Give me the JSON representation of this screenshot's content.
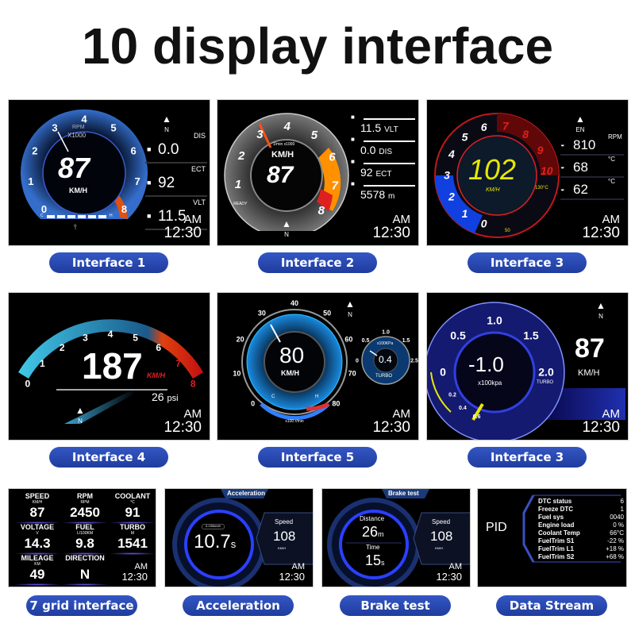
{
  "title": "10 display interface",
  "clock": {
    "am": "AM",
    "time": "12:30"
  },
  "compass": "N",
  "p1": {
    "label": "Interface 1",
    "rpm": "RPM",
    "rpm_mult": "X1000",
    "speed": "87",
    "unit": "KM/H",
    "ticks": [
      "0",
      "1",
      "2",
      "3",
      "4",
      "5",
      "6",
      "7",
      "8"
    ],
    "rows": [
      {
        "name": "DIS",
        "value": "0.0",
        "icon": "ab-distance-icon"
      },
      {
        "name": "ECT",
        "value": "92",
        "icon": "coolant-icon"
      },
      {
        "name": "VLT",
        "value": "11.5",
        "icon": "battery-icon"
      }
    ],
    "temp_c": "C",
    "temp_h": "H"
  },
  "p2": {
    "label": "Interface 2",
    "ticks": [
      "1",
      "2",
      "3",
      "4",
      "5",
      "6",
      "7",
      "8"
    ],
    "rpm": "1/min x1000",
    "unit": "KM/H",
    "speed": "87",
    "ready": "READY",
    "rows": [
      {
        "value": "11.5",
        "unit": "VLT",
        "icon": "battery-icon"
      },
      {
        "value": "0.0",
        "unit": "DIS",
        "icon": "ab-distance-icon"
      },
      {
        "value": "92",
        "unit": "ECT",
        "icon": "coolant-icon"
      },
      {
        "value": "5578",
        "unit": "m",
        "icon": "altitude-icon"
      }
    ]
  },
  "p3": {
    "label": "Interface 3",
    "ticks": [
      "0",
      "1",
      "2",
      "3",
      "4",
      "5",
      "6",
      "7",
      "8",
      "9",
      "10"
    ],
    "speed": "102",
    "unit": "KM/H",
    "compass": "EN",
    "temp_hi": "130°C",
    "temp_lo": "50",
    "rows": [
      {
        "value": "810",
        "unit": "RPM",
        "icon": "rpm-icon"
      },
      {
        "value": "68",
        "unit": "°C",
        "icon": "coolant-icon"
      },
      {
        "value": "62",
        "unit": "°C",
        "icon": "oil-icon"
      }
    ]
  },
  "p4": {
    "label": "Interface 4",
    "ticks": [
      "0",
      "1",
      "2",
      "3",
      "4",
      "5",
      "6",
      "7",
      "8"
    ],
    "speed": "187",
    "unit": "KM/H",
    "boost": "26",
    "boost_unit": "psi"
  },
  "p5": {
    "label": "Interface 5",
    "ticks": [
      "0",
      "10",
      "20",
      "30",
      "40",
      "50",
      "60",
      "70",
      "80"
    ],
    "speed": "80",
    "unit": "KM/H",
    "rpm_unit": "x100 r/min",
    "cold": "C",
    "hot": "H",
    "turbo": {
      "ticks": [
        "0",
        "0.5",
        "1.0",
        "1.5",
        "2.5"
      ],
      "unit": "x100KPa",
      "value": "0.4",
      "name": "TURBO"
    }
  },
  "p6": {
    "label": "Interface 3",
    "ticks": [
      "0",
      "0.5",
      "1.0",
      "1.5",
      "2.0"
    ],
    "inner_ticks": [
      "0.2",
      "0.4",
      "0.6"
    ],
    "value": "-1.0",
    "unit": "x100kpa",
    "name": "TURBO",
    "speed": "87",
    "speed_unit": "KM/H"
  },
  "p7": {
    "label": "7 grid interface",
    "cells": [
      {
        "name": "SPEED",
        "unit": "KM/H",
        "value": "87"
      },
      {
        "name": "RPM",
        "unit": "RPM",
        "value": "2450"
      },
      {
        "name": "COOLANT",
        "unit": "°C",
        "value": "91"
      },
      {
        "name": "VOLTAGE",
        "unit": "V",
        "value": "14.3"
      },
      {
        "name": "FUEL",
        "unit": "L/100KM",
        "value": "9.8"
      },
      {
        "name": "TURBO",
        "unit": "M",
        "value": "1541"
      },
      {
        "name": "MILEAGE",
        "unit": "KM",
        "value": "49"
      },
      {
        "name": "DIRECTION",
        "unit": "",
        "value": "N"
      }
    ]
  },
  "p8": {
    "label": "Acceleration",
    "header": "Acceleration",
    "range": "0-100km/h",
    "value": "10.7",
    "value_unit": "s",
    "speed_label": "Speed",
    "speed": "108",
    "speed_unit": "KM/H"
  },
  "p9": {
    "label": "Brake test",
    "header": "Brake test",
    "distance_label": "Distance",
    "distance": "26",
    "distance_unit": "m",
    "time_label": "Time",
    "time": "15",
    "time_unit": "s",
    "speed_label": "Speed",
    "speed": "108",
    "speed_unit": "KM/H"
  },
  "p10": {
    "label": "Data Stream",
    "pid": "PID",
    "rows": [
      {
        "k": "DTC status",
        "v": "6"
      },
      {
        "k": "Freeze DTC",
        "v": "1"
      },
      {
        "k": "Fuel sys",
        "v": "0040"
      },
      {
        "k": "Engine load",
        "v": "0  %"
      },
      {
        "k": "Coolant Temp",
        "v": "66°C"
      },
      {
        "k": "FuelTrim S1",
        "v": "-22  %"
      },
      {
        "k": "FuelTrim L1",
        "v": "+18  %"
      },
      {
        "k": "FuelTrim S2",
        "v": "+68  %"
      }
    ]
  },
  "colors": {
    "pill": "#2a4bb5",
    "blue": "#2f7fff",
    "red": "#e02020",
    "yellow": "#e8e800",
    "panel": "#000000"
  }
}
